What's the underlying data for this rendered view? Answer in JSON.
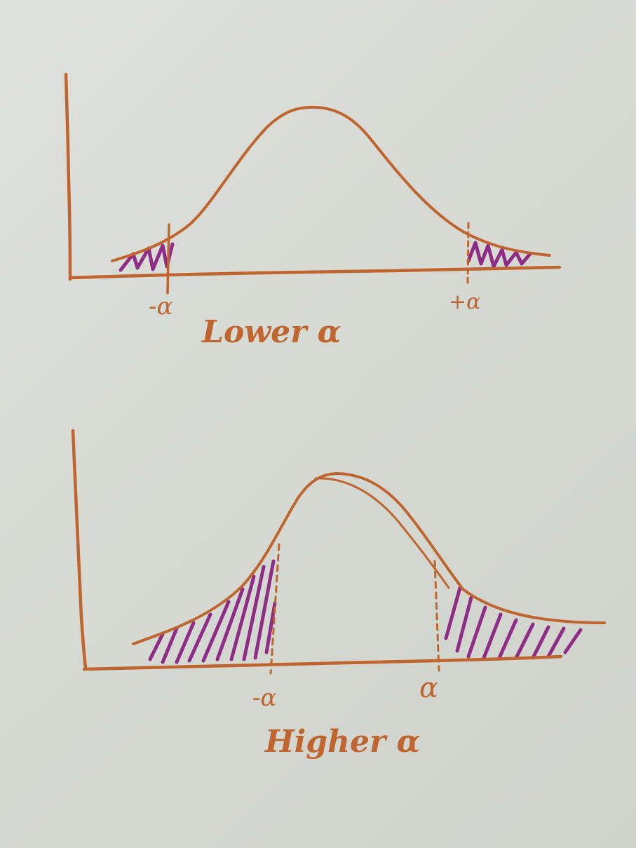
{
  "colors": {
    "paper": "#d9dcd6",
    "ink_orange": "#c0652f",
    "ink_purple": "#8e2c86"
  },
  "icons": {
    "top_curve": "bell-curve-icon",
    "bottom_curve": "bell-curve-icon"
  },
  "top_panel": {
    "left_tick_label": "-α",
    "right_tick_label": "+α",
    "caption": "Lower α"
  },
  "bottom_panel": {
    "left_tick_label": "-α",
    "right_tick_label": "α",
    "caption": "Higher α"
  }
}
